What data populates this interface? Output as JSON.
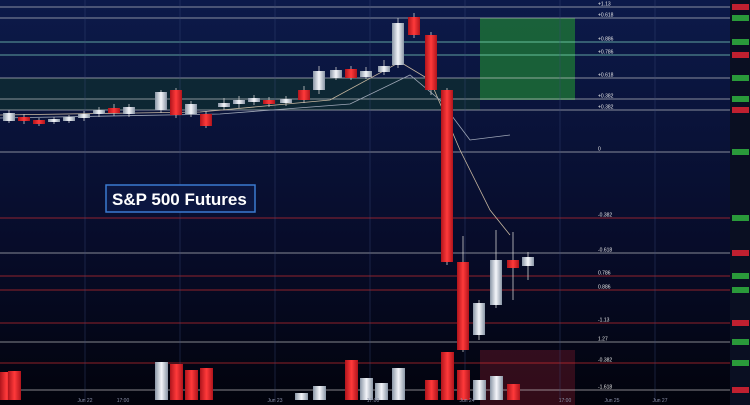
{
  "title": "S&P 500 Futures",
  "levels": [
    "+1.13",
    "+0.618",
    "+0.886",
    "+0.786",
    "+0.618",
    "+0.382",
    "+0.382",
    "0",
    "-0.382",
    "-0.618",
    "0.786",
    "0.886",
    "-1.13",
    "1.27",
    "-0.382",
    "-1.618"
  ],
  "dates": [
    "Jun 22",
    "17:00",
    "Jun 23",
    "17:00",
    "Jun 24",
    "17:00",
    "Jun 25",
    "Jun 27"
  ]
}
